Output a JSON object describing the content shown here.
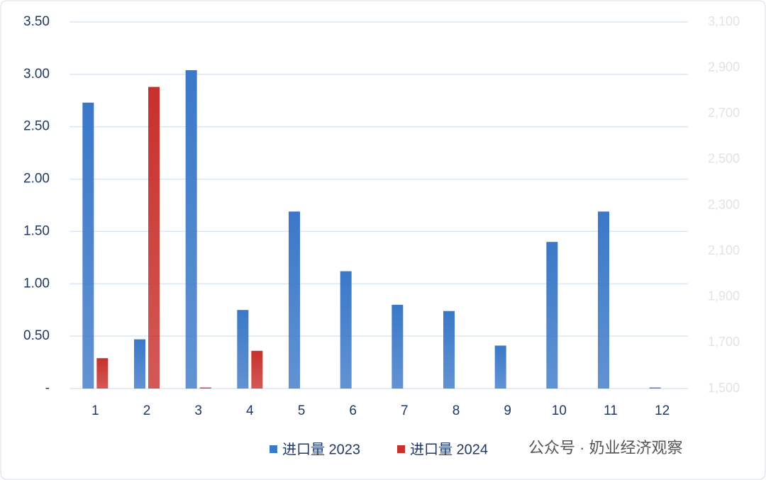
{
  "chart_data": {
    "type": "bar",
    "categories": [
      "1",
      "2",
      "3",
      "4",
      "5",
      "6",
      "7",
      "8",
      "9",
      "10",
      "11",
      "12"
    ],
    "series": [
      {
        "name": "进口量 2023",
        "color": "#3a78c8",
        "values": [
          2.73,
          0.47,
          3.04,
          0.75,
          1.69,
          1.12,
          0.8,
          0.74,
          0.41,
          1.4,
          1.69,
          0.01
        ]
      },
      {
        "name": "进口量 2024",
        "color": "#c8302c",
        "values": [
          0.29,
          2.88,
          0.01,
          0.36,
          null,
          null,
          null,
          null,
          null,
          null,
          null,
          null
        ]
      }
    ],
    "ylim": [
      0,
      3.5
    ],
    "yticks": [
      {
        "value": 0,
        "label": "-"
      },
      {
        "value": 0.5,
        "label": "0.50"
      },
      {
        "value": 1,
        "label": "1.00"
      },
      {
        "value": 1.5,
        "label": "1.50"
      },
      {
        "value": 2,
        "label": "2.00"
      },
      {
        "value": 2.5,
        "label": "2.50"
      },
      {
        "value": 3,
        "label": "3.00"
      },
      {
        "value": 3.5,
        "label": "3.50"
      }
    ],
    "y2lim": [
      1500,
      3100
    ],
    "y2ticks": [
      {
        "value": 1500,
        "label": "1,500"
      },
      {
        "value": 1700,
        "label": "1,700"
      },
      {
        "value": 1900,
        "label": "1,900"
      },
      {
        "value": 2100,
        "label": "2,100"
      },
      {
        "value": 2300,
        "label": "2,300"
      },
      {
        "value": 2500,
        "label": "2,500"
      },
      {
        "value": 2700,
        "label": "2,700"
      },
      {
        "value": 2900,
        "label": "2,900"
      },
      {
        "value": 3100,
        "label": "3,100"
      }
    ],
    "grid": true,
    "legend": "bottom",
    "watermark": "公众号 · 奶业经济观察"
  }
}
